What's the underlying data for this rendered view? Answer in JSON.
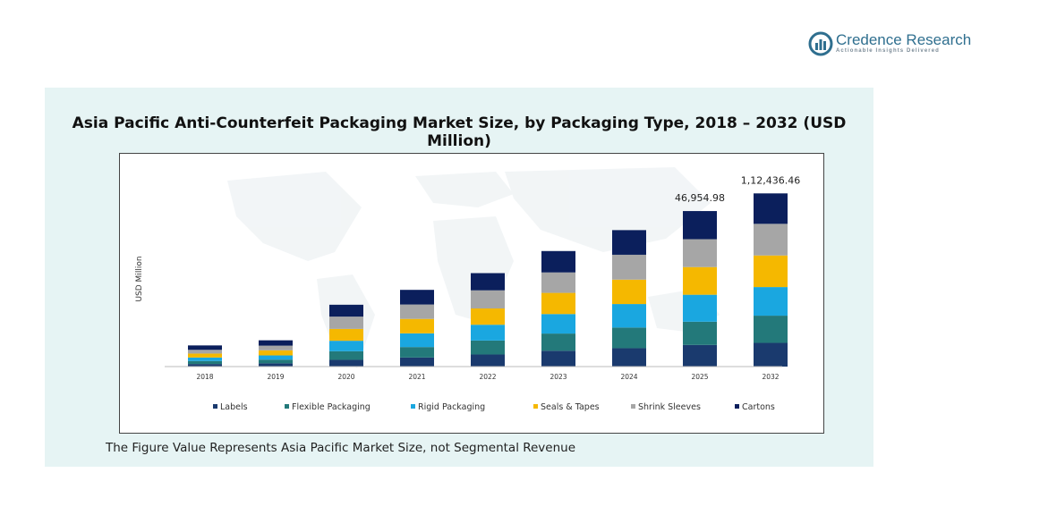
{
  "brand": {
    "name": "Credence Research",
    "tagline": "Actionable Insights Delivered"
  },
  "chart_data": {
    "type": "bar",
    "stacked": true,
    "title": "Asia Pacific Anti-Counterfeit Packaging Market Size, by Packaging Type, 2018 – 2032 (USD Million)",
    "xlabel": "",
    "ylabel": "USD Million",
    "categories": [
      "2018",
      "2019",
      "2020",
      "2021",
      "2022",
      "2023",
      "2024",
      "2025",
      "2032"
    ],
    "series": [
      {
        "name": "Labels",
        "color": "#1a3a6e",
        "values": [
          1100,
          1400,
          2900,
          3900,
          5200,
          6800,
          7900,
          9300,
          10200
        ]
      },
      {
        "name": "Flexible Packaging",
        "color": "#23797a",
        "values": [
          1300,
          1600,
          3700,
          4500,
          6000,
          7400,
          8900,
          10000,
          11700
        ]
      },
      {
        "name": "Rigid Packaging",
        "color": "#1aa7e0",
        "values": [
          1500,
          1800,
          4500,
          5900,
          6800,
          8400,
          10100,
          11600,
          12300
        ]
      },
      {
        "name": "Seals & Tapes",
        "color": "#f5b800",
        "values": [
          1700,
          2200,
          5100,
          6200,
          7000,
          9100,
          10500,
          11900,
          13600
        ]
      },
      {
        "name": "Shrink Sleeves",
        "color": "#a6a6a6",
        "values": [
          1600,
          2000,
          5300,
          6200,
          7800,
          8800,
          10700,
          12000,
          13600
        ]
      },
      {
        "name": "Cartons",
        "color": "#0b1f5c",
        "values": [
          1900,
          2300,
          5100,
          6300,
          7400,
          9200,
          10600,
          12100,
          13100
        ]
      }
    ],
    "data_labels": [
      {
        "category": "2025",
        "text": "46,954.98"
      },
      {
        "category": "2032",
        "text": "1,12,436.46"
      }
    ],
    "ylim": [
      0,
      80000
    ],
    "grid": false,
    "legend_position": "bottom"
  },
  "footnote": "The Figure Value Represents Asia Pacific Market Size, not Segmental Revenue"
}
